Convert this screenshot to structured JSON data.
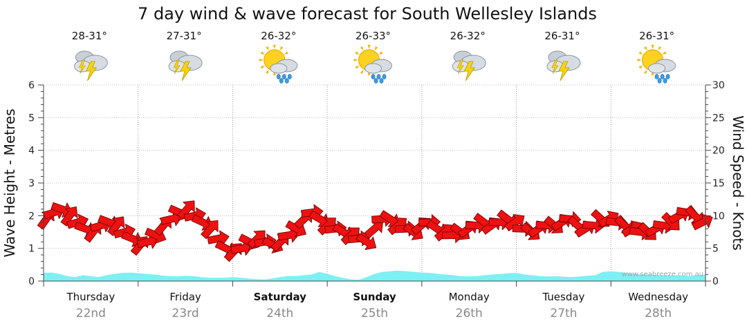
{
  "chart_data": {
    "type": "line",
    "title": "7 day wind & wave forecast for South Wellesley Islands",
    "ylabel_left": "Wave Height - Metres",
    "ylabel_right": "Wind Speed - Knots",
    "ylim_left": [
      0,
      6
    ],
    "ylim_right": [
      0,
      30
    ],
    "yticks_left": [
      "0",
      "1",
      "2",
      "3",
      "4",
      "5",
      "6"
    ],
    "yticks_right": [
      "0",
      "5",
      "10",
      "15",
      "20",
      "25",
      "30"
    ],
    "days": [
      {
        "name": "Thursday",
        "date": "22nd",
        "bold": false,
        "temp": "28-31°",
        "icon": "storm"
      },
      {
        "name": "Friday",
        "date": "23rd",
        "bold": false,
        "temp": "27-31°",
        "icon": "storm"
      },
      {
        "name": "Saturday",
        "date": "24th",
        "bold": true,
        "temp": "26-32°",
        "icon": "sun-rain"
      },
      {
        "name": "Sunday",
        "date": "25th",
        "bold": true,
        "temp": "26-33°",
        "icon": "sun-rain"
      },
      {
        "name": "Monday",
        "date": "26th",
        "bold": false,
        "temp": "26-32°",
        "icon": "storm"
      },
      {
        "name": "Tuesday",
        "date": "27th",
        "bold": false,
        "temp": "26-31°",
        "icon": "storm"
      },
      {
        "name": "Wednesday",
        "date": "28th",
        "bold": false,
        "temp": "26-31°",
        "icon": "sun-rain"
      }
    ],
    "series": [
      {
        "name": "Wave Height (m)",
        "color": "#7ef0f4",
        "values": [
          0.25,
          0.26,
          0.22,
          0.15,
          0.12,
          0.18,
          0.15,
          0.12,
          0.18,
          0.22,
          0.25,
          0.26,
          0.24,
          0.22,
          0.2,
          0.17,
          0.15,
          0.14,
          0.16,
          0.15,
          0.12,
          0.1,
          0.1,
          0.1,
          0.12,
          0.1,
          0.08,
          0.06,
          0.05,
          0.08,
          0.12,
          0.15,
          0.15,
          0.18,
          0.2,
          0.28,
          0.22,
          0.15,
          0.1,
          0.05,
          0.04,
          0.12,
          0.22,
          0.28,
          0.3,
          0.32,
          0.3,
          0.28,
          0.26,
          0.25,
          0.22,
          0.2,
          0.18,
          0.15,
          0.14,
          0.15,
          0.18,
          0.2,
          0.22,
          0.24,
          0.25,
          0.2,
          0.18,
          0.15,
          0.14,
          0.15,
          0.13,
          0.12,
          0.14,
          0.16,
          0.18,
          0.28,
          0.3,
          0.28,
          0.25,
          0.22,
          0.2,
          0.2,
          0.18,
          0.18,
          0.17,
          0.16,
          0.15,
          0.18,
          0.2
        ]
      },
      {
        "name": "Wind Speed (knots)",
        "color": "#ee1111",
        "values": [
          9.5,
          10.5,
          11,
          10,
          9,
          8,
          7.5,
          8.5,
          9,
          8.5,
          7.5,
          6.5,
          5.5,
          6,
          7,
          8.5,
          9.5,
          10.5,
          11,
          10,
          9,
          8,
          6.5,
          5,
          4.5,
          5,
          6,
          6.5,
          6,
          5.5,
          6,
          7,
          8,
          9.5,
          10.5,
          9.5,
          8.5,
          8,
          7.5,
          7,
          6.5,
          6,
          8,
          9.5,
          9.5,
          8.5,
          8,
          7.5,
          8.5,
          9,
          8,
          7.5,
          7,
          7.5,
          8,
          8.5,
          9,
          8.5,
          9,
          9.5,
          9,
          8,
          7.5,
          8,
          8.5,
          8.5,
          9,
          9.5,
          8.5,
          8,
          8.5,
          9.5,
          9.5,
          9,
          8.5,
          8,
          7.5,
          7.5,
          8,
          8.5,
          9,
          10,
          10.5,
          10,
          9
        ]
      }
    ],
    "watermark": "www.seabreeze.com.au"
  }
}
